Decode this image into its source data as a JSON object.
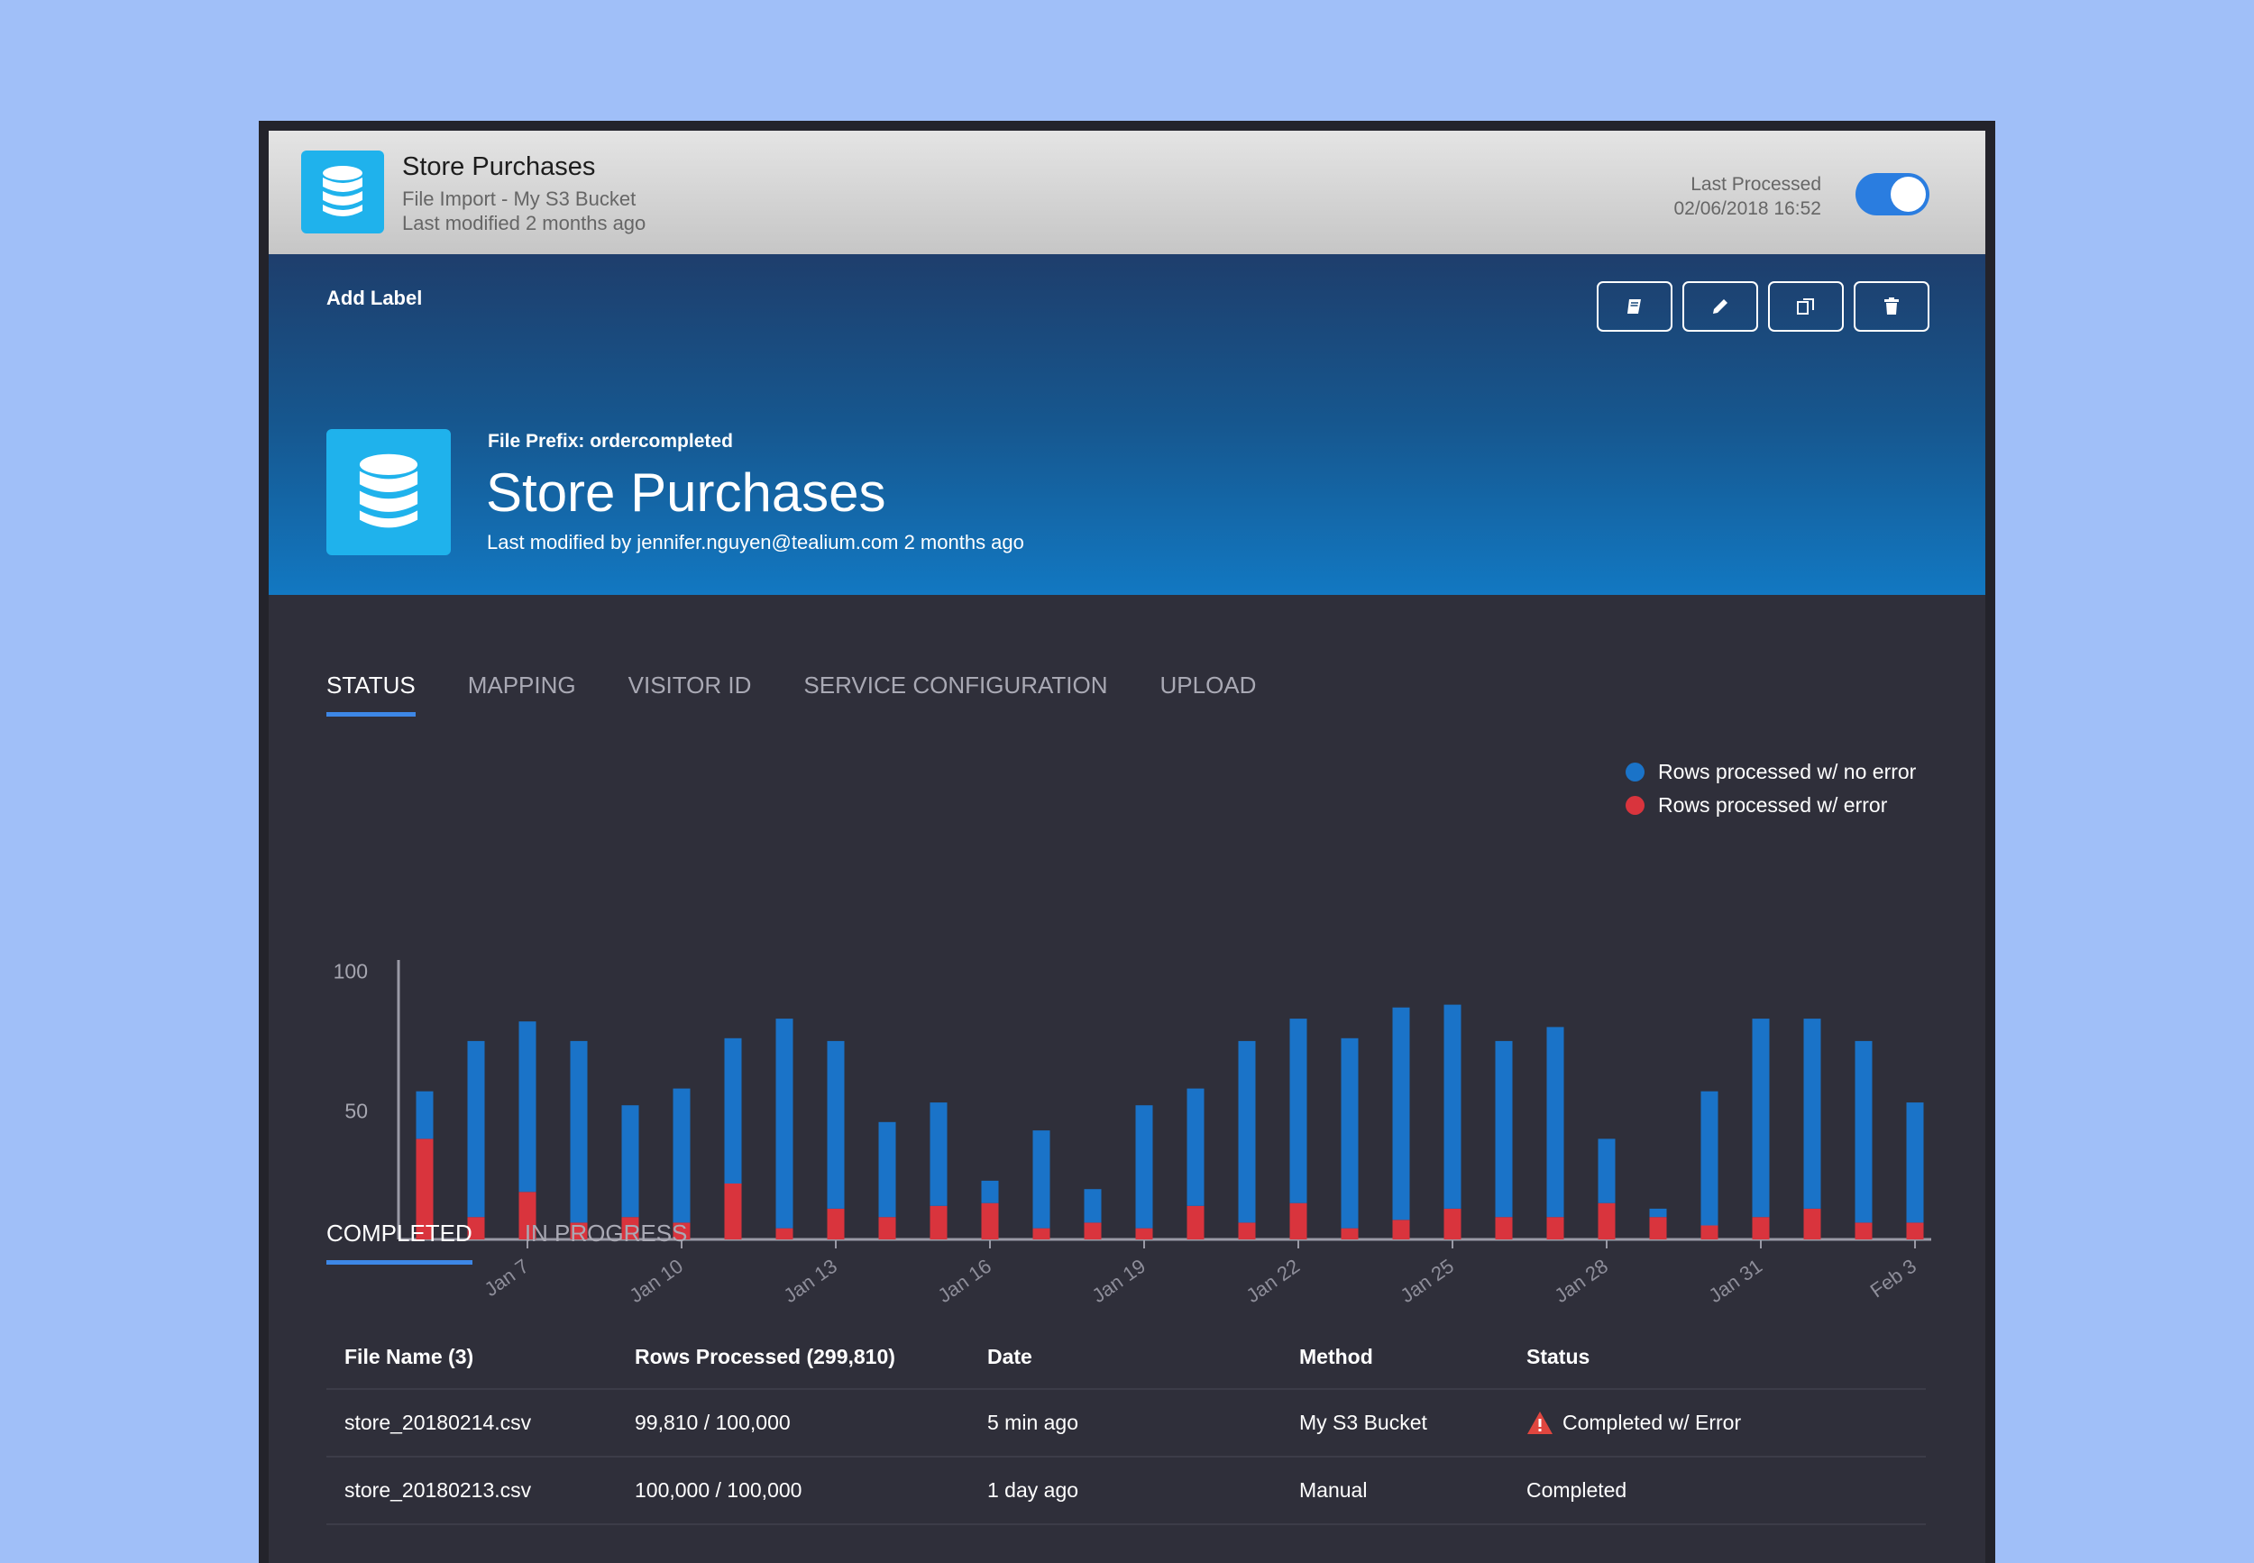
{
  "topbar": {
    "title": "Store Purchases",
    "subtitle": "File Import - My S3 Bucket",
    "modified": "Last modified 2 months ago",
    "last_processed_label": "Last Processed",
    "last_processed_value": "02/06/2018 16:52",
    "toggle_on": true,
    "icon": "database-icon"
  },
  "hero": {
    "add_label": "Add Label",
    "actions": [
      "notebook-icon",
      "pencil-icon",
      "copy-icon",
      "trash-icon"
    ],
    "prefix": "File Prefix: ordercompleted",
    "title": "Store Purchases",
    "modified": "Last modified by jennifer.nguyen@tealium.com 2 months ago",
    "icon": "database-icon"
  },
  "tabs": [
    {
      "label": "STATUS",
      "active": true
    },
    {
      "label": "MAPPING",
      "active": false
    },
    {
      "label": "VISITOR ID",
      "active": false
    },
    {
      "label": "SERVICE CONFIGURATION",
      "active": false
    },
    {
      "label": "UPLOAD",
      "active": false
    }
  ],
  "legend": [
    {
      "label": "Rows processed w/ no error",
      "color": "#1a73c8"
    },
    {
      "label": "Rows processed w/ error",
      "color": "#d9343d"
    }
  ],
  "chart_data": {
    "type": "bar",
    "stacked": true,
    "categories": [
      "Jan 5",
      "Jan 6",
      "Jan 7",
      "Jan 8",
      "Jan 9",
      "Jan 10",
      "Jan 11",
      "Jan 12",
      "Jan 13",
      "Jan 14",
      "Jan 15",
      "Jan 16",
      "Jan 17",
      "Jan 18",
      "Jan 19",
      "Jan 20",
      "Jan 21",
      "Jan 22",
      "Jan 23",
      "Jan 24",
      "Jan 25",
      "Jan 26",
      "Jan 27",
      "Jan 28",
      "Jan 29",
      "Jan 30",
      "Jan 31",
      "Feb 1",
      "Feb 2",
      "Feb 3"
    ],
    "tick_labels": [
      "Jan 7",
      "Jan 10",
      "Jan 13",
      "Jan 16",
      "Jan 19",
      "Jan 22",
      "Jan 25",
      "Jan 28",
      "Jan 31",
      "Feb 3"
    ],
    "series": [
      {
        "name": "Rows processed w/ error",
        "color": "#d9343d",
        "values": [
          36,
          8,
          17,
          6,
          8,
          6,
          20,
          4,
          11,
          8,
          12,
          13,
          4,
          6,
          4,
          12,
          6,
          13,
          4,
          7,
          11,
          8,
          8,
          13,
          8,
          5,
          8,
          11,
          6,
          6
        ]
      },
      {
        "name": "Rows processed w/ no error",
        "color": "#1a73c8",
        "values": [
          17,
          63,
          61,
          65,
          40,
          48,
          52,
          75,
          60,
          34,
          37,
          8,
          35,
          12,
          44,
          42,
          65,
          66,
          68,
          76,
          73,
          63,
          68,
          23,
          3,
          48,
          71,
          68,
          65,
          43
        ]
      }
    ],
    "y_ticks": [
      50,
      100
    ],
    "ylim": [
      0,
      100
    ],
    "grid": false
  },
  "subtabs": [
    {
      "label": "COMPLETED",
      "active": true
    },
    {
      "label": "IN PROGRESS",
      "active": false
    }
  ],
  "table": {
    "headers": [
      "File Name (3)",
      "Rows Processed (299,810)",
      "Date",
      "Method",
      "Status"
    ],
    "rows": [
      {
        "file": "store_20180214.csv",
        "rows": "99,810 / 100,000",
        "date": "5 min ago",
        "method": "My S3 Bucket",
        "status": "Completed w/ Error",
        "warning": true
      },
      {
        "file": "store_20180213.csv",
        "rows": "100,000 / 100,000",
        "date": "1 day ago",
        "method": "Manual",
        "status": "Completed",
        "warning": false
      }
    ]
  }
}
